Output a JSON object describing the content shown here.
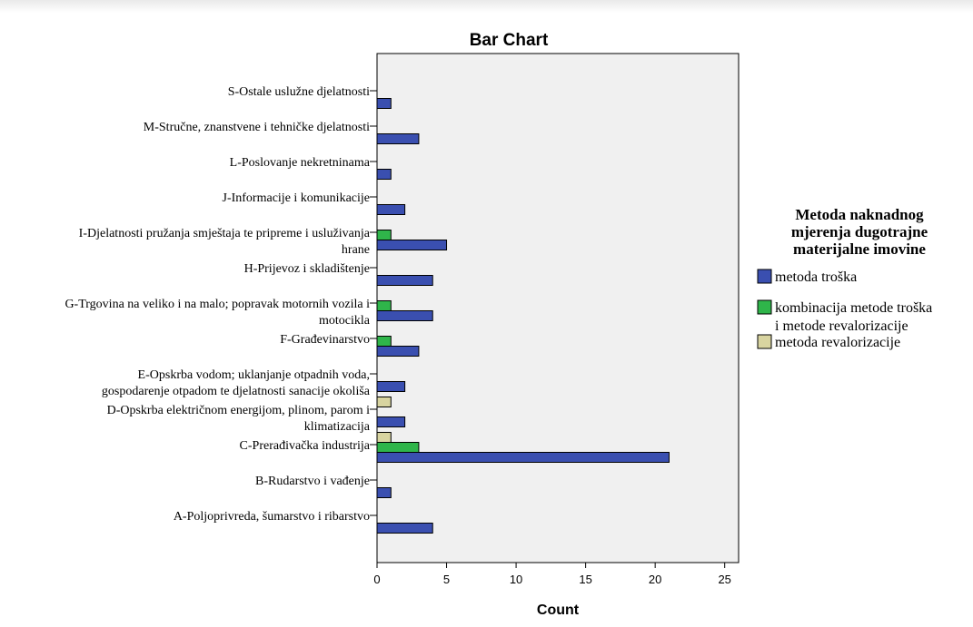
{
  "chart_data": {
    "type": "bar",
    "orientation": "horizontal",
    "title": "Bar Chart",
    "xlabel": "Count",
    "ylabel": "",
    "xlim": [
      0,
      26
    ],
    "x_ticks": [
      0,
      5,
      10,
      15,
      20,
      25
    ],
    "grid": false,
    "legend_position": "right",
    "legend_title": [
      "Metoda naknadnog",
      "mjerenja dugotrajne",
      "materijalne imovine"
    ],
    "categories": [
      [
        "S-Ostale uslužne djelatnosti"
      ],
      [
        "M-Stručne, znanstvene i tehničke djelatnosti"
      ],
      [
        "L-Poslovanje nekretninama"
      ],
      [
        "J-Informacije i komunikacije"
      ],
      [
        "I-Djelatnosti pružanja smještaja te pripreme i usluživanja",
        "hrane"
      ],
      [
        "H-Prijevoz i skladištenje"
      ],
      [
        "G-Trgovina na veliko i na malo; popravak motornih vozila i",
        "motocikla"
      ],
      [
        "F-Građevinarstvo"
      ],
      [
        "E-Opskrba vodom; uklanjanje otpadnih voda,",
        "gospodarenje otpadom te djelatnosti sanacije okoliša"
      ],
      [
        "D-Opskrba električnom energijom, plinom, parom i",
        "klimatizacija"
      ],
      [
        "C-Prerađivačka industrija"
      ],
      [
        "B-Rudarstvo i vađenje"
      ],
      [
        "A-Poljoprivreda, šumarstvo i ribarstvo"
      ]
    ],
    "series": [
      {
        "name": "metoda troška",
        "legend_lines": [
          "metoda troška"
        ],
        "color": "#3a4fb0",
        "values": [
          1,
          3,
          1,
          2,
          5,
          4,
          4,
          3,
          2,
          2,
          21,
          1,
          4
        ]
      },
      {
        "name": "kombinacija metode troška i metode revalorizacije",
        "legend_lines": [
          "kombinacija metode troška",
          "i metode revalorizacije"
        ],
        "color": "#2fb54a",
        "values": [
          0,
          0,
          0,
          0,
          1,
          0,
          1,
          1,
          0,
          0,
          3,
          0,
          0
        ]
      },
      {
        "name": "metoda revalorizacije",
        "legend_lines": [
          "metoda revalorizacije"
        ],
        "color": "#d8d4a0",
        "values": [
          0,
          0,
          0,
          0,
          0,
          0,
          0,
          0,
          0,
          1,
          1,
          0,
          0
        ]
      }
    ],
    "plot_background": "#f0f0f0"
  }
}
